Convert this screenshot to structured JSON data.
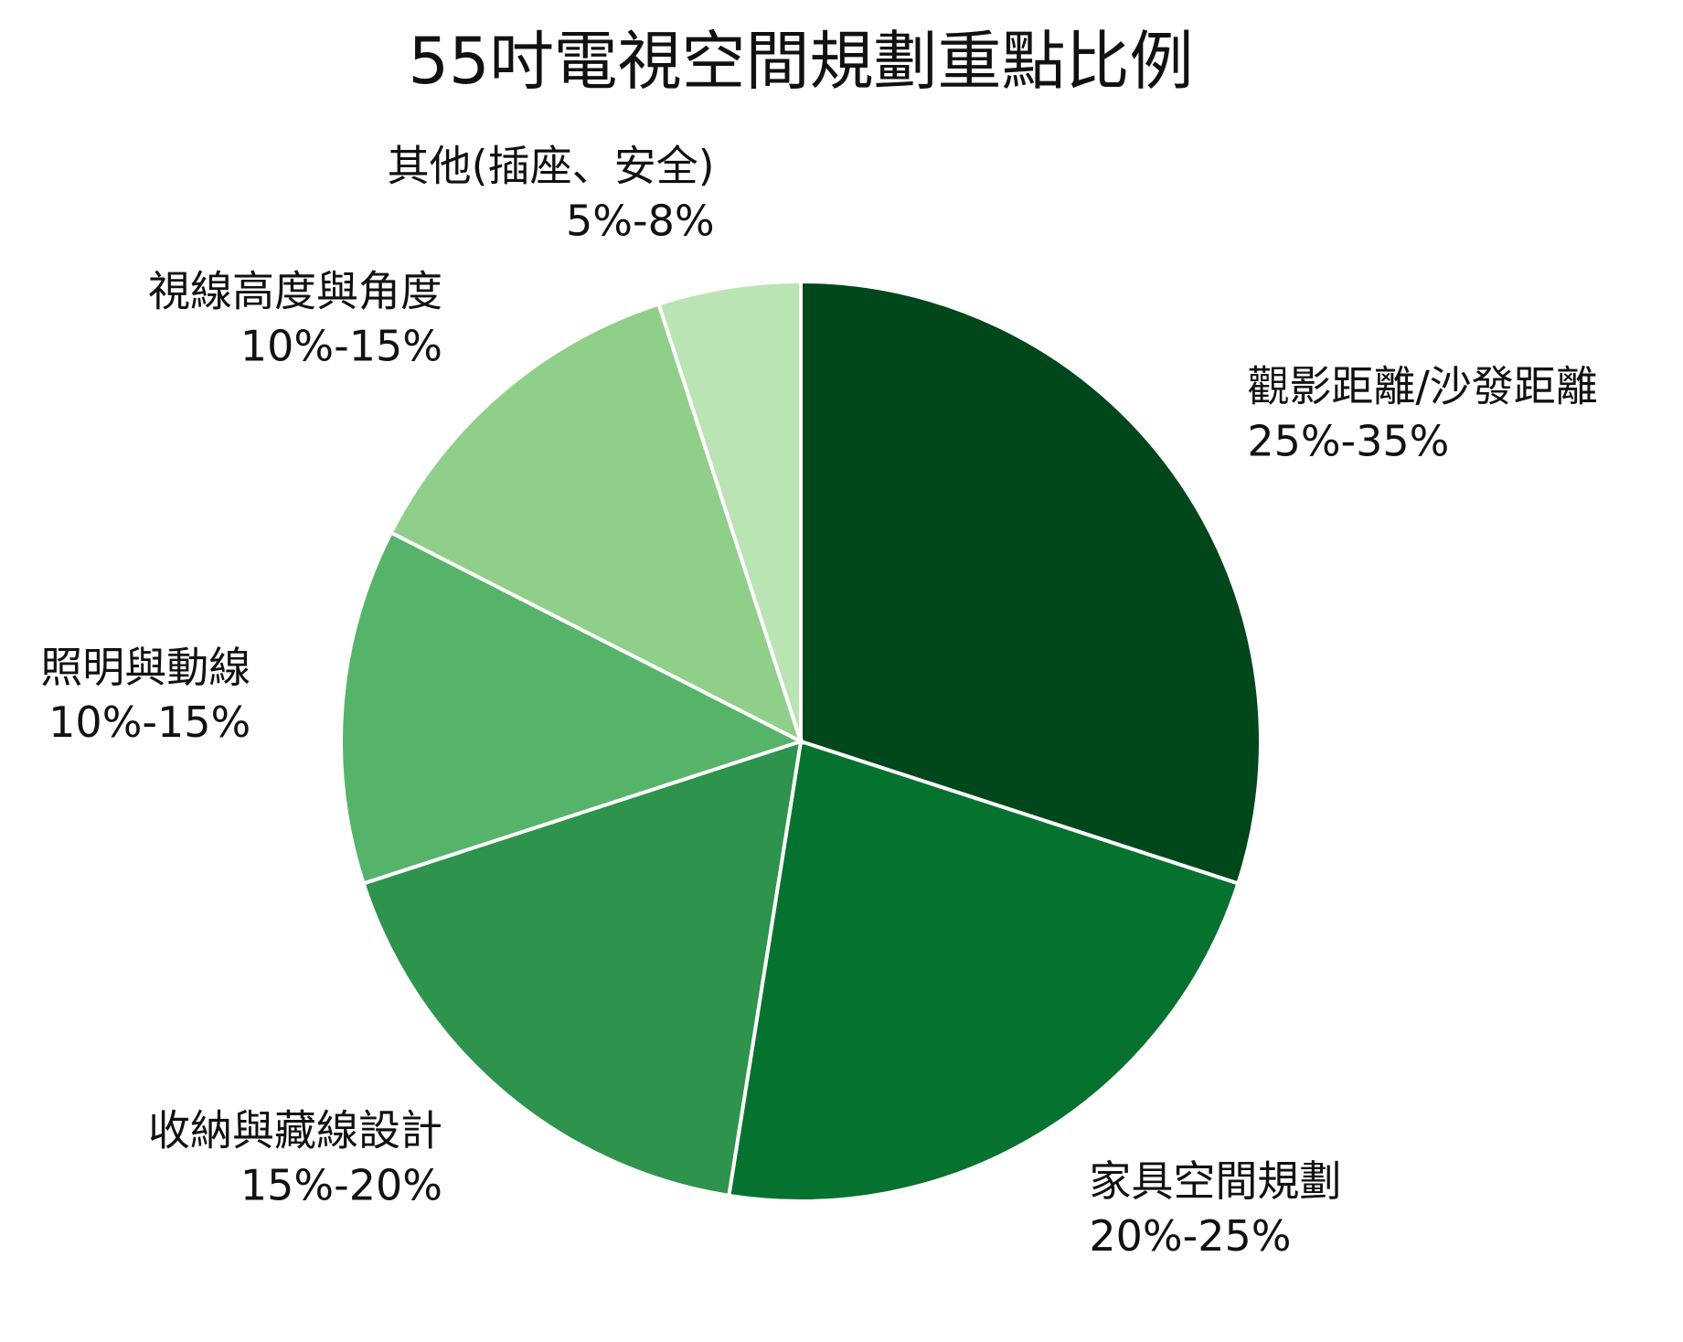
{
  "chart_data": {
    "type": "pie",
    "title": "55吋電視空間規劃重點比例",
    "categories": [
      "觀影距離/沙發距離",
      "家具空間規劃",
      "收納與藏線設計",
      "照明與動線",
      "視線高度與角度",
      "其他(插座、安全)"
    ],
    "values": [
      30,
      22.5,
      17.5,
      12.5,
      12.5,
      5
    ],
    "value_labels": [
      "25%-35%",
      "20%-25%",
      "15%-20%",
      "10%-15%",
      "10%-15%",
      "5%-8%"
    ],
    "colors": [
      "#00471b",
      "#067230",
      "#2e934c",
      "#56b46a",
      "#90cf89",
      "#bae4b3"
    ]
  }
}
